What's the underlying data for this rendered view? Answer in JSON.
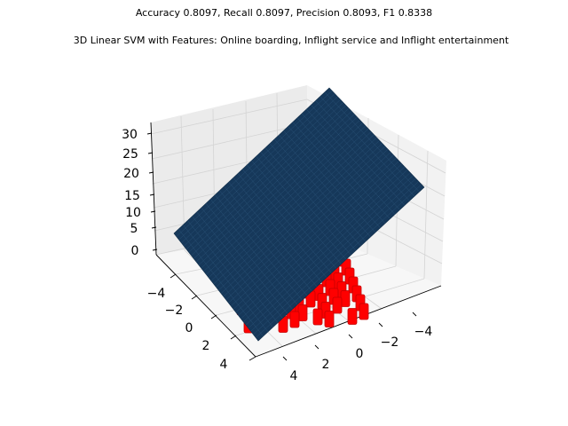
{
  "chart_data": {
    "type": "scatter",
    "suptitle": "Accuracy 0.8097, Recall 0.8097, Precision 0.8093, F1 0.8338",
    "title": "3D Linear SVM with Features: Online boarding, Inflight service and Inflight entertainment",
    "z_ticks": [
      "0",
      "5",
      "10",
      "15",
      "20",
      "25",
      "30"
    ],
    "y_ticks": [
      "−4",
      "−2",
      "0",
      "2",
      "4"
    ],
    "x_ticks": [
      "4",
      "2",
      "0",
      "−2",
      "−4"
    ],
    "surface": {
      "label": "decision plane",
      "color": "#16385a"
    },
    "series": [
      {
        "color": "#ff0000",
        "x": [],
        "y": [],
        "z": []
      }
    ]
  }
}
